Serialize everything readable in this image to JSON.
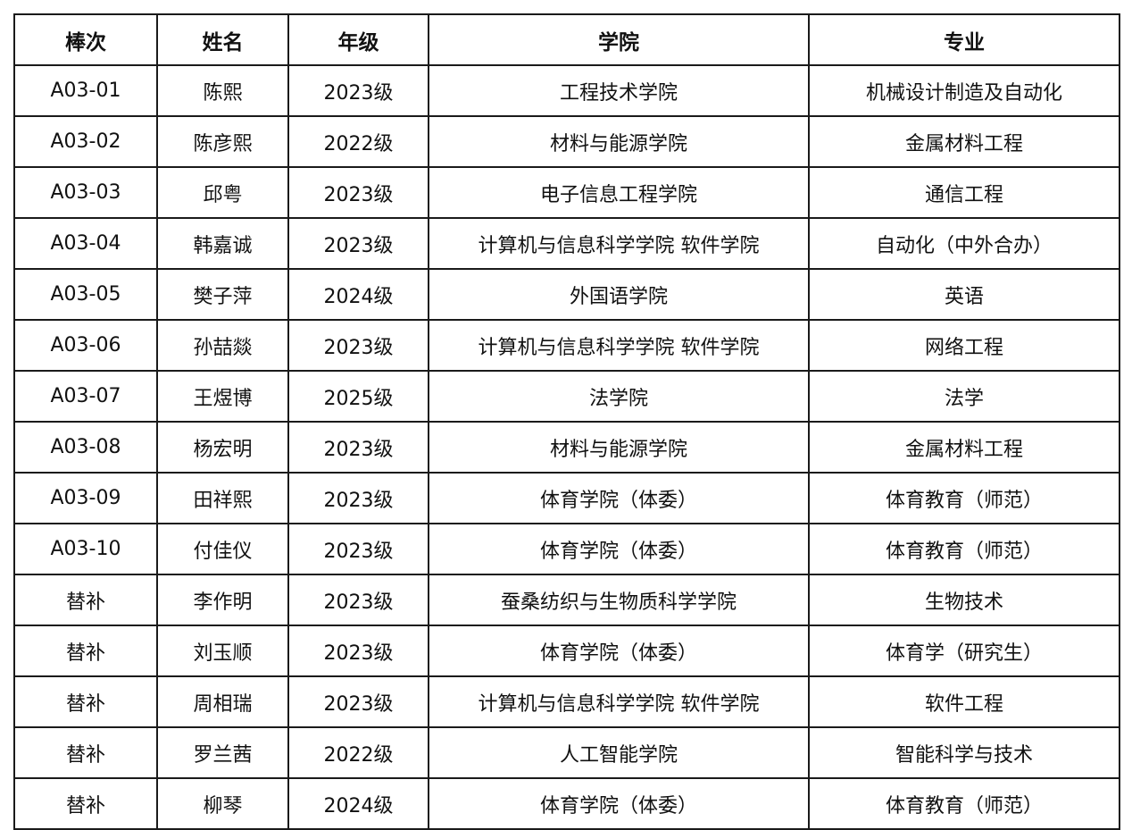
{
  "table": {
    "headers": [
      "棒次",
      "姓名",
      "年级",
      "学院",
      "专业"
    ],
    "rows": [
      [
        "A03-01",
        "陈熙",
        "2023级",
        "工程技术学院",
        "机械设计制造及自动化"
      ],
      [
        "A03-02",
        "陈彦熙",
        "2022级",
        "材料与能源学院",
        "金属材料工程"
      ],
      [
        "A03-03",
        "邱粤",
        "2023级",
        "电子信息工程学院",
        "通信工程"
      ],
      [
        "A03-04",
        "韩嘉诚",
        "2023级",
        "计算机与信息科学学院 软件学院",
        "自动化（中外合办）"
      ],
      [
        "A03-05",
        "樊子萍",
        "2024级",
        "外国语学院",
        "英语"
      ],
      [
        "A03-06",
        "孙喆燚",
        "2023级",
        "计算机与信息科学学院 软件学院",
        "网络工程"
      ],
      [
        "A03-07",
        "王煜博",
        "2025级",
        "法学院",
        "法学"
      ],
      [
        "A03-08",
        "杨宏明",
        "2023级",
        "材料与能源学院",
        "金属材料工程"
      ],
      [
        "A03-09",
        "田祥熙",
        "2023级",
        "体育学院（体委）",
        "体育教育（师范）"
      ],
      [
        "A03-10",
        "付佳仪",
        "2023级",
        "体育学院（体委）",
        "体育教育（师范）"
      ],
      [
        "替补",
        "李作明",
        "2023级",
        "蚕桑纺织与生物质科学学院",
        "生物技术"
      ],
      [
        "替补",
        "刘玉顺",
        "2023级",
        "体育学院（体委）",
        "体育学（研究生）"
      ],
      [
        "替补",
        "周相瑞",
        "2023级",
        "计算机与信息科学学院 软件学院",
        "软件工程"
      ],
      [
        "替补",
        "罗兰茜",
        "2022级",
        "人工智能学院",
        "智能科学与技术"
      ],
      [
        "替补",
        "柳琴",
        "2024级",
        "体育学院（体委）",
        "体育教育（师范）"
      ]
    ]
  }
}
